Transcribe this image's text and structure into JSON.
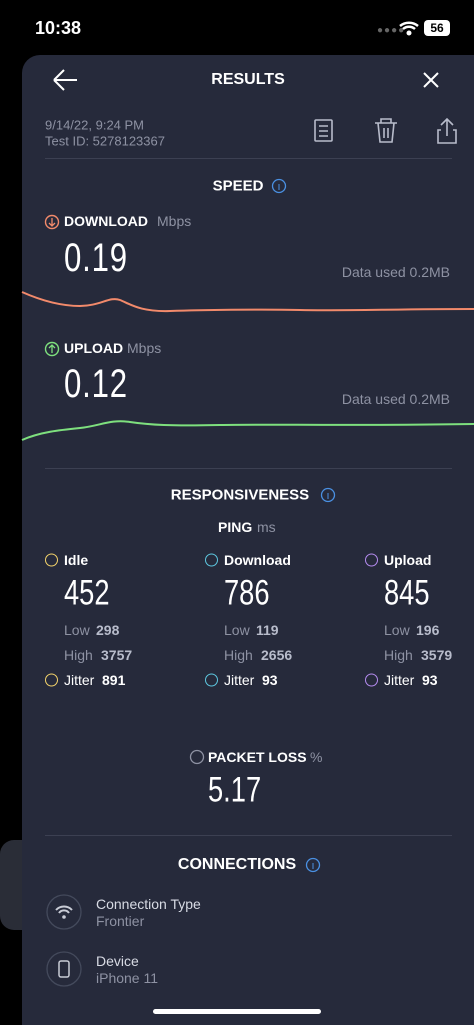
{
  "status_bar": {
    "time": "10:38",
    "battery": "56"
  },
  "header": {
    "title": "RESULTS",
    "date": "9/14/22, 9:24 PM",
    "test_id": "Test ID: 5278123367"
  },
  "speed": {
    "title": "SPEED",
    "download": {
      "label": "DOWNLOAD",
      "unit": "Mbps",
      "value": "0.19",
      "data_used": "Data used 0.2MB"
    },
    "upload": {
      "label": "UPLOAD",
      "unit": "Mbps",
      "value": "0.12",
      "data_used": "Data used 0.2MB"
    }
  },
  "responsiveness": {
    "title": "RESPONSIVENESS",
    "ping_label": "PING",
    "ping_unit": "ms",
    "columns": [
      {
        "label": "Idle",
        "value": "452",
        "low_label": "Low",
        "low": "298",
        "high_label": "High",
        "high": "3757",
        "jitter_label": "Jitter",
        "jitter": "891"
      },
      {
        "label": "Download",
        "value": "786",
        "low_label": "Low",
        "low": "119",
        "high_label": "High",
        "high": "2656",
        "jitter_label": "Jitter",
        "jitter": "93"
      },
      {
        "label": "Upload",
        "value": "845",
        "low_label": "Low",
        "low": "196",
        "high_label": "High",
        "high": "3579",
        "jitter_label": "Jitter",
        "jitter": "93"
      }
    ]
  },
  "packet_loss": {
    "label": "PACKET LOSS",
    "unit": "%",
    "value": "5.17"
  },
  "connections": {
    "title": "CONNECTIONS",
    "items": [
      {
        "label": "Connection Type",
        "value": "Frontier"
      },
      {
        "label": "Device",
        "value": "iPhone 11"
      }
    ]
  }
}
